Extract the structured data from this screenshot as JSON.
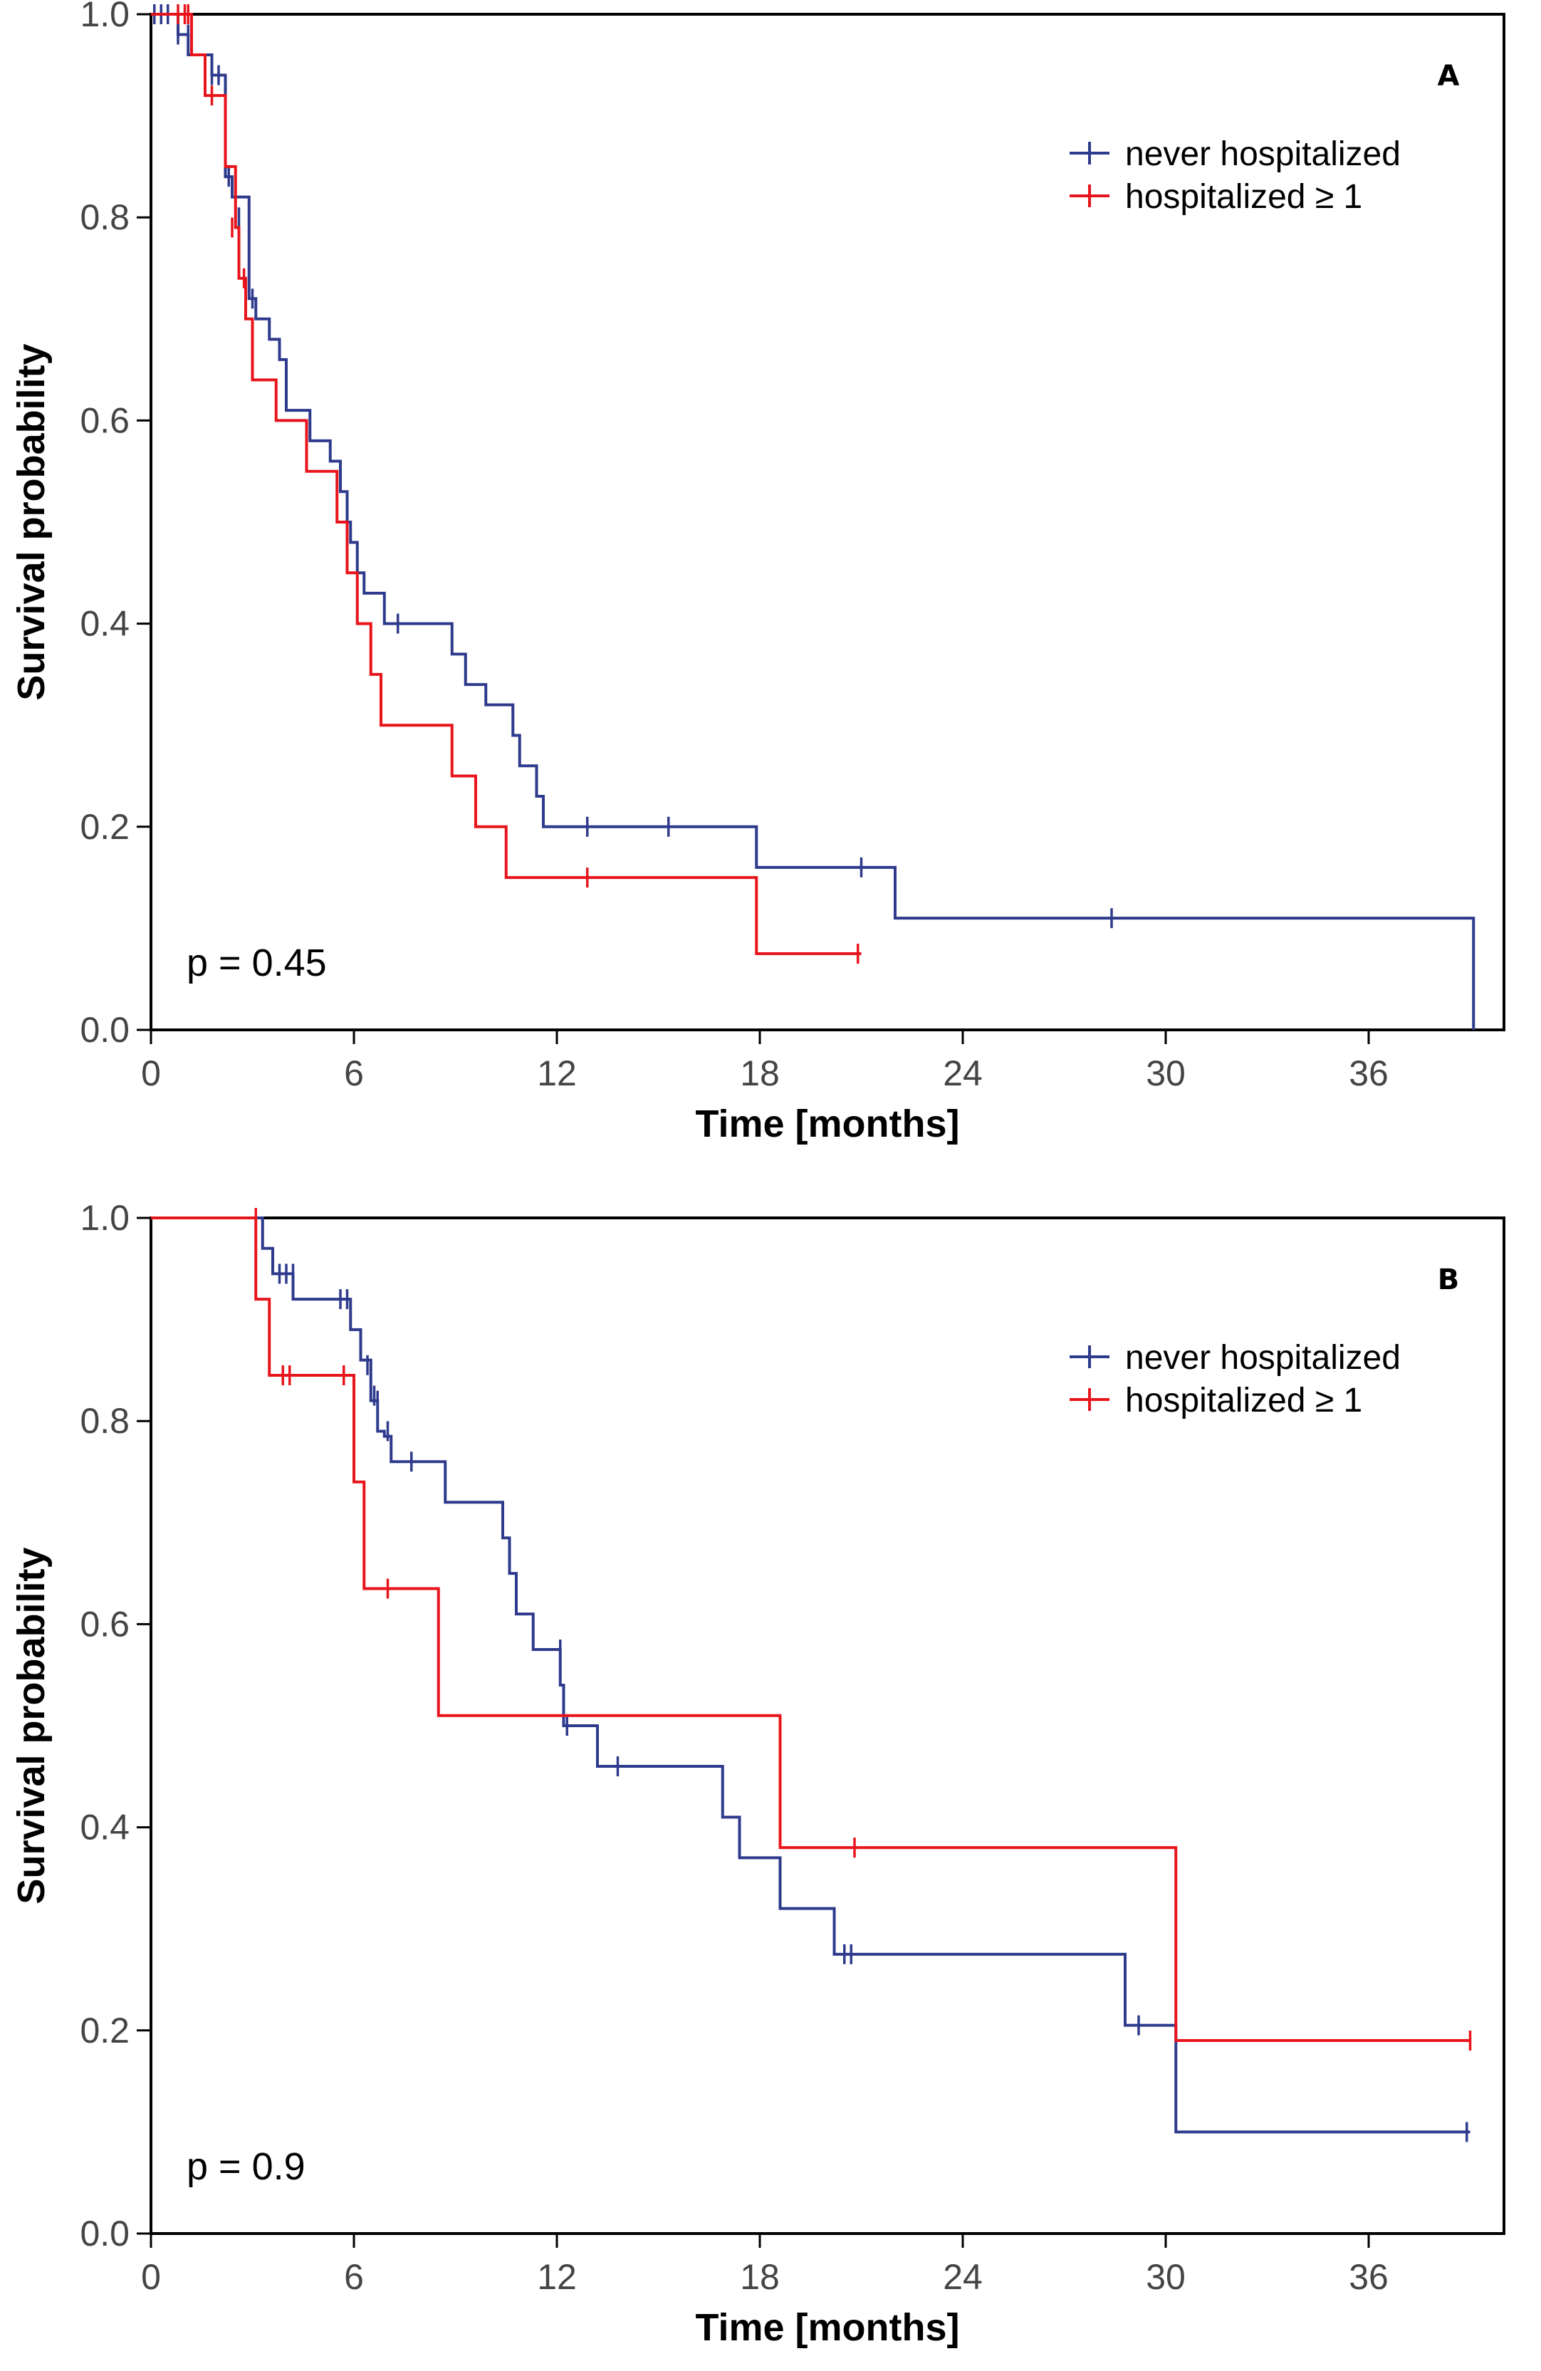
{
  "chart_data": [
    {
      "type": "line",
      "step": "post",
      "panel_label": "A",
      "xlabel": "Time [months]",
      "ylabel": "Survival probability",
      "xlim": [
        0,
        40
      ],
      "ylim": [
        0,
        1
      ],
      "xticks": [
        0,
        6,
        12,
        18,
        24,
        30,
        36
      ],
      "yticks": [
        0.0,
        0.2,
        0.4,
        0.6,
        0.8,
        1.0
      ],
      "ytick_labels": [
        "0.0",
        "0.2",
        "0.4",
        "0.6",
        "0.8",
        "1.0"
      ],
      "annotation": "p = 0.45",
      "legend": "top-right",
      "series": [
        {
          "name": "never hospitalized",
          "color": "#2e3a8c",
          "x": [
            0,
            0.8,
            1.1,
            1.8,
            2.2,
            2.4,
            2.9,
            3.1,
            3.5,
            3.8,
            4.0,
            4.7,
            5.3,
            5.6,
            5.8,
            5.9,
            6.1,
            6.3,
            6.9,
            8.9,
            9.3,
            9.9,
            10.7,
            10.9,
            11.4,
            11.6,
            17.9,
            22.0,
            39.1
          ],
          "y": [
            1.0,
            0.98,
            0.96,
            0.94,
            0.84,
            0.82,
            0.72,
            0.7,
            0.68,
            0.66,
            0.61,
            0.58,
            0.56,
            0.53,
            0.5,
            0.48,
            0.45,
            0.43,
            0.4,
            0.37,
            0.34,
            0.32,
            0.29,
            0.26,
            0.23,
            0.2,
            0.16,
            0.11,
            0.0
          ],
          "censor_x": [
            0.1,
            0.3,
            0.5,
            0.8,
            1.1,
            1.8,
            2.0,
            2.3,
            2.6,
            3.0,
            7.3,
            12.9,
            15.3,
            21.0,
            28.4
          ],
          "censor_y": [
            1.0,
            1.0,
            1.0,
            0.98,
            0.98,
            0.94,
            0.94,
            0.84,
            0.8,
            0.72,
            0.4,
            0.2,
            0.2,
            0.16,
            0.11
          ]
        },
        {
          "name": "hospitalized ≥ 1",
          "color": "#e8141c",
          "x": [
            0,
            1.2,
            1.6,
            2.2,
            2.5,
            2.6,
            2.7,
            2.75,
            2.8,
            3.0,
            3.7,
            4.6,
            5.5,
            5.8,
            6.1,
            6.5,
            6.8,
            8.9,
            9.6,
            10.5,
            17.9,
            21.0
          ],
          "y": [
            1.0,
            0.96,
            0.92,
            0.85,
            0.79,
            0.74,
            0.74,
            0.74,
            0.7,
            0.64,
            0.6,
            0.55,
            0.5,
            0.45,
            0.4,
            0.35,
            0.3,
            0.25,
            0.2,
            0.15,
            0.075,
            0.075
          ],
          "censor_x": [
            0.8,
            1.0,
            1.1,
            1.8,
            2.4,
            2.75,
            12.9,
            20.9
          ],
          "censor_y": [
            1.0,
            1.0,
            1.0,
            0.92,
            0.79,
            0.74,
            0.15,
            0.075
          ]
        }
      ]
    },
    {
      "type": "line",
      "step": "post",
      "panel_label": "B",
      "xlabel": "Time [months]",
      "ylabel": "Survival probability",
      "xlim": [
        0,
        40
      ],
      "ylim": [
        0,
        1
      ],
      "xticks": [
        0,
        6,
        12,
        18,
        24,
        30,
        36
      ],
      "yticks": [
        0.0,
        0.2,
        0.4,
        0.6,
        0.8,
        1.0
      ],
      "ytick_labels": [
        "0.0",
        "0.2",
        "0.4",
        "0.6",
        "0.8",
        "1.0"
      ],
      "annotation": "p = 0.9",
      "legend": "top-right",
      "series": [
        {
          "name": "never hospitalized",
          "color": "#2e3a8c",
          "x": [
            0,
            3.3,
            3.6,
            4.2,
            5.9,
            6.2,
            6.5,
            6.7,
            6.9,
            7.1,
            7.3,
            8.7,
            10.4,
            10.6,
            10.8,
            11.3,
            12.1,
            12.2,
            13.2,
            16.9,
            17.4,
            18.6,
            20.2,
            28.8,
            30.3,
            39.0
          ],
          "y": [
            1.0,
            0.97,
            0.945,
            0.92,
            0.89,
            0.86,
            0.82,
            0.79,
            0.785,
            0.76,
            0.76,
            0.72,
            0.685,
            0.65,
            0.61,
            0.575,
            0.54,
            0.5,
            0.46,
            0.41,
            0.37,
            0.32,
            0.275,
            0.205,
            0.1,
            0.1
          ],
          "censor_x": [
            3.8,
            4.0,
            4.2,
            5.6,
            5.8,
            6.4,
            6.6,
            6.7,
            7.0,
            7.7,
            12.1,
            12.3,
            13.8,
            20.5,
            20.7,
            29.2,
            38.9
          ],
          "censor_y": [
            0.945,
            0.945,
            0.945,
            0.92,
            0.92,
            0.855,
            0.825,
            0.82,
            0.79,
            0.76,
            0.575,
            0.5,
            0.46,
            0.275,
            0.275,
            0.205,
            0.1
          ]
        },
        {
          "name": "hospitalized ≥ 1",
          "color": "#e8141c",
          "x": [
            0,
            3.1,
            3.5,
            6.0,
            6.3,
            8.5,
            18.6,
            30.3,
            39.0
          ],
          "y": [
            1.0,
            0.92,
            0.845,
            0.74,
            0.635,
            0.51,
            0.38,
            0.19,
            0.19
          ],
          "censor_x": [
            3.1,
            3.9,
            4.1,
            5.7,
            7.0,
            20.8,
            39.0
          ],
          "censor_y": [
            1.0,
            0.845,
            0.845,
            0.845,
            0.635,
            0.38,
            0.19
          ]
        }
      ]
    }
  ]
}
